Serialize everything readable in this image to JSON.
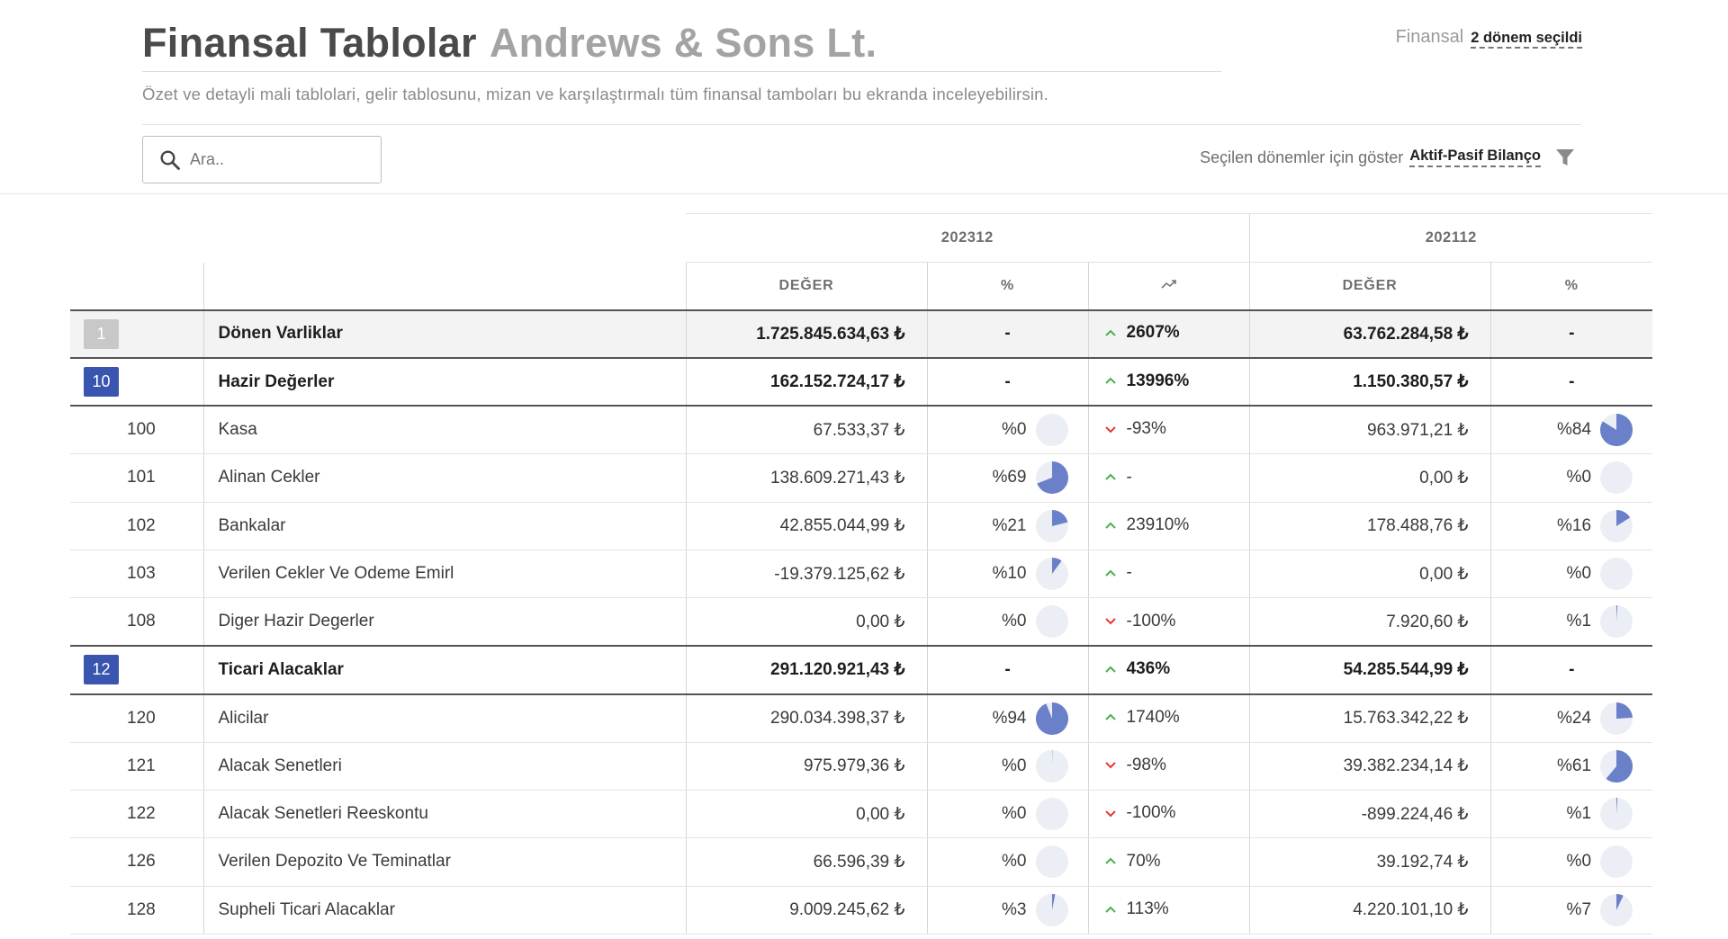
{
  "header": {
    "title": "Finansal Tablolar",
    "company": "Andrews & Sons Lt.",
    "subtitle": "Özet ve detayli mali tablolari, gelir tablosunu, mizan ve karşılaştırmalı tüm finansal tamboları bu ekranda inceleyebilirsin.",
    "finansal_label": "Finansal",
    "period_selection": "2 dönem seçildi"
  },
  "search": {
    "placeholder": "Ara.."
  },
  "view": {
    "label": "Seçilen dönemler için göster",
    "value": "Aktif-Pasif Bilanço"
  },
  "colors": {
    "accent": "#3a55b0",
    "pie_fill": "#6a80c9",
    "pie_bg": "#eceef5",
    "up": "#4caf50",
    "down": "#e53935",
    "badge_inactive": "#c8c8c8"
  },
  "table": {
    "periods": [
      "202312",
      "202112"
    ],
    "columns": {
      "value": "DEĞER",
      "percent": "%",
      "trend_icon": "trend-chart-icon"
    },
    "rows": [
      {
        "code": "1",
        "type": "group",
        "badge": "inactive",
        "name": "Dönen Varliklar",
        "v1": "1.725.845.634,63 ₺",
        "p1": "-",
        "dir": "up",
        "change": "2607%",
        "v2": "63.762.284,58 ₺",
        "p2": "-"
      },
      {
        "code": "10",
        "type": "group",
        "badge": "active",
        "name": "Hazir Değerler",
        "v1": "162.152.724,17 ₺",
        "p1": "-",
        "dir": "up",
        "change": "13996%",
        "v2": "1.150.380,57 ₺",
        "p2": "-"
      },
      {
        "code": "100",
        "type": "item",
        "name": "Kasa",
        "v1": "67.533,37 ₺",
        "p1": "%0",
        "f1": 0.0,
        "dir": "down",
        "change": "-93%",
        "v2": "963.971,21 ₺",
        "p2": "%84",
        "f2": 0.84
      },
      {
        "code": "101",
        "type": "item",
        "name": "Alinan Cekler",
        "v1": "138.609.271,43 ₺",
        "p1": "%69",
        "f1": 0.69,
        "dir": "up",
        "change": "-",
        "v2": "0,00 ₺",
        "p2": "%0",
        "f2": 0.0
      },
      {
        "code": "102",
        "type": "item",
        "name": "Bankalar",
        "v1": "42.855.044,99 ₺",
        "p1": "%21",
        "f1": 0.21,
        "dir": "up",
        "change": "23910%",
        "v2": "178.488,76 ₺",
        "p2": "%16",
        "f2": 0.16
      },
      {
        "code": "103",
        "type": "item",
        "name": "Verilen Cekler Ve Odeme Emirl",
        "v1": "-19.379.125,62 ₺",
        "p1": "%10",
        "f1": 0.1,
        "dir": "up",
        "change": "-",
        "v2": "0,00 ₺",
        "p2": "%0",
        "f2": 0.0
      },
      {
        "code": "108",
        "type": "item",
        "name": "Diger Hazir Degerler",
        "v1": "0,00 ₺",
        "p1": "%0",
        "f1": 0.0,
        "dir": "down",
        "change": "-100%",
        "v2": "7.920,60 ₺",
        "p2": "%1",
        "f2": 0.01
      },
      {
        "code": "12",
        "type": "group",
        "badge": "active",
        "name": "Ticari Alacaklar",
        "v1": "291.120.921,43 ₺",
        "p1": "-",
        "dir": "up",
        "change": "436%",
        "v2": "54.285.544,99 ₺",
        "p2": "-"
      },
      {
        "code": "120",
        "type": "item",
        "name": "Alicilar",
        "v1": "290.034.398,37 ₺",
        "p1": "%94",
        "f1": 0.94,
        "dir": "up",
        "change": "1740%",
        "v2": "15.763.342,22 ₺",
        "p2": "%24",
        "f2": 0.24
      },
      {
        "code": "121",
        "type": "item",
        "name": "Alacak Senetleri",
        "v1": "975.979,36 ₺",
        "p1": "%0",
        "f1": 0.003,
        "dir": "down",
        "change": "-98%",
        "v2": "39.382.234,14 ₺",
        "p2": "%61",
        "f2": 0.61
      },
      {
        "code": "122",
        "type": "item",
        "name": "Alacak Senetleri Reeskontu",
        "v1": "0,00 ₺",
        "p1": "%0",
        "f1": 0.0,
        "dir": "down",
        "change": "-100%",
        "v2": "-899.224,46 ₺",
        "p2": "%1",
        "f2": 0.01
      },
      {
        "code": "126",
        "type": "item",
        "name": "Verilen Depozito Ve Teminatlar",
        "v1": "66.596,39 ₺",
        "p1": "%0",
        "f1": 0.0,
        "dir": "up",
        "change": "70%",
        "v2": "39.192,74 ₺",
        "p2": "%0",
        "f2": 0.0
      },
      {
        "code": "128",
        "type": "item",
        "name": "Supheli Ticari Alacaklar",
        "v1": "9.009.245,62 ₺",
        "p1": "%3",
        "f1": 0.03,
        "dir": "up",
        "change": "113%",
        "v2": "4.220.101,10 ₺",
        "p2": "%7",
        "f2": 0.07
      }
    ]
  }
}
